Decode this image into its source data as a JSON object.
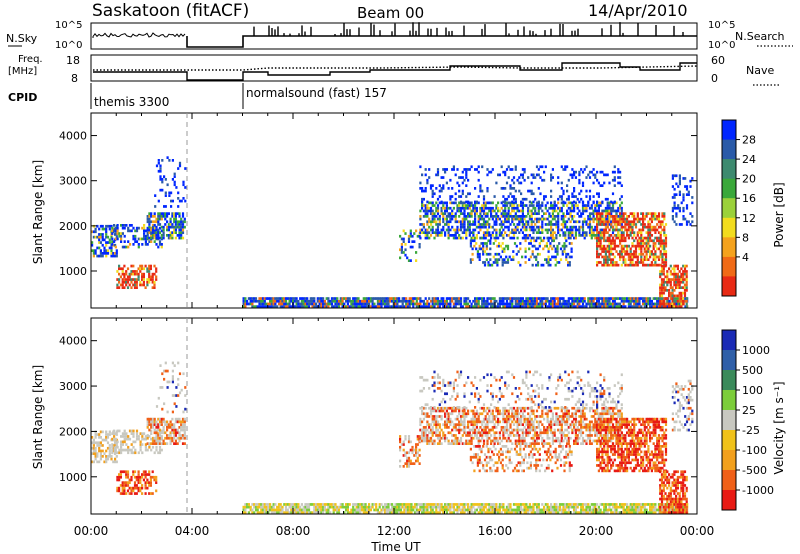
{
  "header": {
    "station": "Saskatoon (fitACF)",
    "beam": "Beam 00",
    "date": "14/Apr/2010"
  },
  "summary": {
    "nsky_label": "N.Sky",
    "nsky_ticks": [
      "10^5",
      "10^0"
    ],
    "nsearch_label": "N.Search",
    "freq_label_1": "Freq.",
    "freq_label_2": "[MHz]",
    "freq_ticks": [
      "18",
      "8"
    ],
    "nave_label": "Nave",
    "nave_ticks": [
      "60",
      "0"
    ],
    "cpid_label": "CPID",
    "cpid_1": "themis 3300",
    "cpid_2": "normalsound (fast) 157"
  },
  "chart_data": [
    {
      "type": "heatmap",
      "name": "power",
      "ylabel": "Slant Range [km]",
      "yticks": [
        "4000",
        "3000",
        "2000",
        "1000"
      ],
      "ylim": [
        180,
        4500
      ],
      "xlim": [
        0,
        24
      ],
      "colorbar_label": "Power [dB]",
      "colorbar_ticks": [
        "28",
        "24",
        "20",
        "16",
        "12",
        "8",
        "4"
      ],
      "colors": [
        "#0026ff",
        "#2a5aa8",
        "#3d8a6f",
        "#3aa83a",
        "#9bd13a",
        "#f2dc1e",
        "#f4a21d",
        "#f06a16",
        "#e82a14"
      ]
    },
    {
      "type": "heatmap",
      "name": "velocity",
      "ylabel": "Slant Range [km]",
      "yticks": [
        "4000",
        "3000",
        "2000",
        "1000"
      ],
      "ylim": [
        180,
        4500
      ],
      "xlim": [
        0,
        24
      ],
      "xlabel": "Time UT",
      "xticks": [
        "00:00",
        "04:00",
        "08:00",
        "12:00",
        "16:00",
        "20:00",
        "00:00"
      ],
      "colorbar_label": "Velocity [m s⁻¹]",
      "colorbar_ticks": [
        "1000",
        "500",
        "100",
        "25",
        "-25",
        "-100",
        "-500",
        "-1000"
      ],
      "colors": [
        "#1a2ab5",
        "#2f5fa8",
        "#3a8a5a",
        "#7ccd3a",
        "#c8c8c0",
        "#f0c21a",
        "#f2a01d",
        "#f06018",
        "#e81a14"
      ]
    }
  ]
}
